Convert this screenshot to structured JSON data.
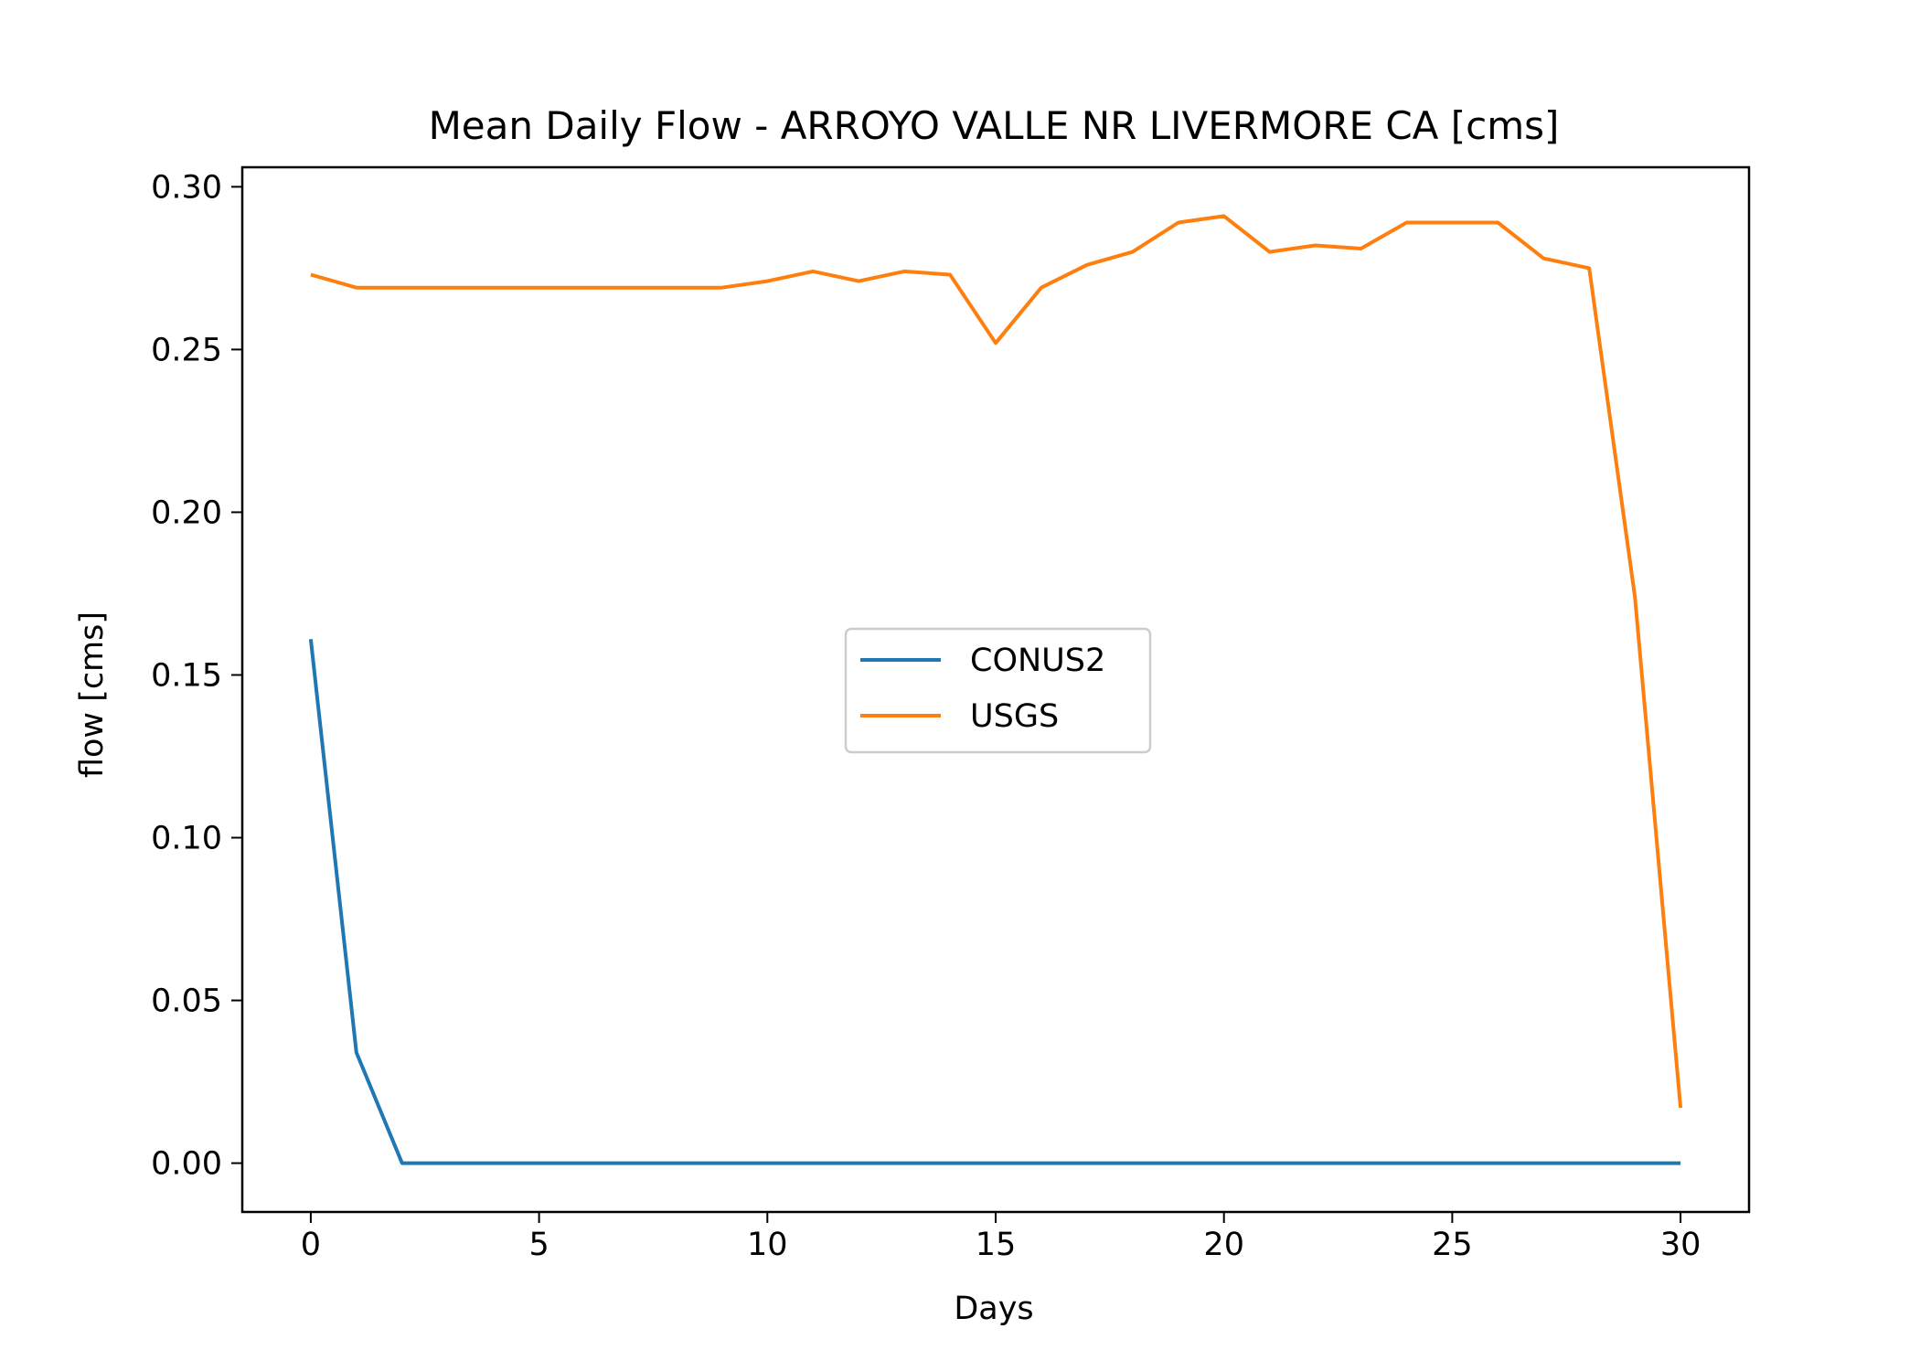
{
  "chart_data": {
    "type": "line",
    "title": "Mean Daily Flow - ARROYO VALLE NR LIVERMORE CA [cms]",
    "xlabel": "Days",
    "ylabel": "flow [cms]",
    "xlim": [
      -1.5,
      31.5
    ],
    "ylim": [
      -0.015,
      0.306
    ],
    "x_ticks": [
      0,
      5,
      10,
      15,
      20,
      25,
      30
    ],
    "x_tick_labels": [
      "0",
      "5",
      "10",
      "15",
      "20",
      "25",
      "30"
    ],
    "y_ticks": [
      0.0,
      0.05,
      0.1,
      0.15,
      0.2,
      0.25,
      0.3
    ],
    "y_tick_labels": [
      "0.00",
      "0.05",
      "0.10",
      "0.15",
      "0.20",
      "0.25",
      "0.30"
    ],
    "grid": false,
    "legend_position": "center",
    "x": [
      0,
      1,
      2,
      3,
      4,
      5,
      6,
      7,
      8,
      9,
      10,
      11,
      12,
      13,
      14,
      15,
      16,
      17,
      18,
      19,
      20,
      21,
      22,
      23,
      24,
      25,
      26,
      27,
      28,
      29,
      30
    ],
    "series": [
      {
        "name": "CONUS2",
        "color": "#1f77b4",
        "values": [
          0.161,
          0.034,
          0.0,
          0.0,
          0.0,
          0.0,
          0.0,
          0.0,
          0.0,
          0.0,
          0.0,
          0.0,
          0.0,
          0.0,
          0.0,
          0.0,
          0.0,
          0.0,
          0.0,
          0.0,
          0.0,
          0.0,
          0.0,
          0.0,
          0.0,
          0.0,
          0.0,
          0.0,
          0.0,
          0.0,
          0.0
        ]
      },
      {
        "name": "USGS",
        "color": "#ff7f0e",
        "values": [
          0.273,
          0.269,
          0.269,
          0.269,
          0.269,
          0.269,
          0.269,
          0.269,
          0.269,
          0.269,
          0.271,
          0.274,
          0.271,
          0.274,
          0.273,
          0.252,
          0.269,
          0.276,
          0.28,
          0.289,
          0.291,
          0.28,
          0.282,
          0.281,
          0.289,
          0.289,
          0.289,
          0.278,
          0.275,
          0.174,
          0.017
        ]
      }
    ]
  }
}
